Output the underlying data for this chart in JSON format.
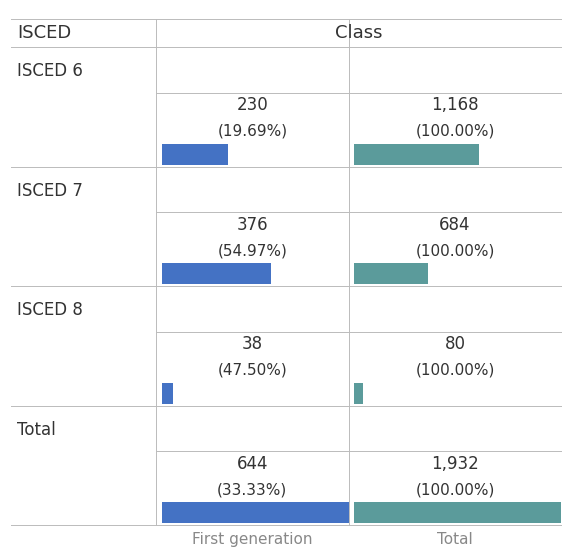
{
  "rows": [
    "ISCED 6",
    "ISCED 7",
    "ISCED 8",
    "Total"
  ],
  "first_gen_values": [
    230,
    376,
    38,
    644
  ],
  "first_gen_pcts": [
    "19.69%",
    "54.97%",
    "47.50%",
    "33.33%"
  ],
  "total_values": [
    1168,
    684,
    80,
    1932
  ],
  "total_pcts": [
    "100.00%",
    "100.00%",
    "100.00%",
    "100.00%"
  ],
  "first_gen_bar_color": "#4472C4",
  "total_bar_color": "#5B9B9B",
  "col_header": "Class",
  "row_header": "ISCED",
  "col1_label": "First generation",
  "col2_label": "Total",
  "bg_color": "#FFFFFF",
  "grid_color": "#BBBBBB",
  "text_color": "#333333",
  "label_color": "#888888",
  "figsize": [
    5.67,
    5.56
  ],
  "dpi": 100
}
